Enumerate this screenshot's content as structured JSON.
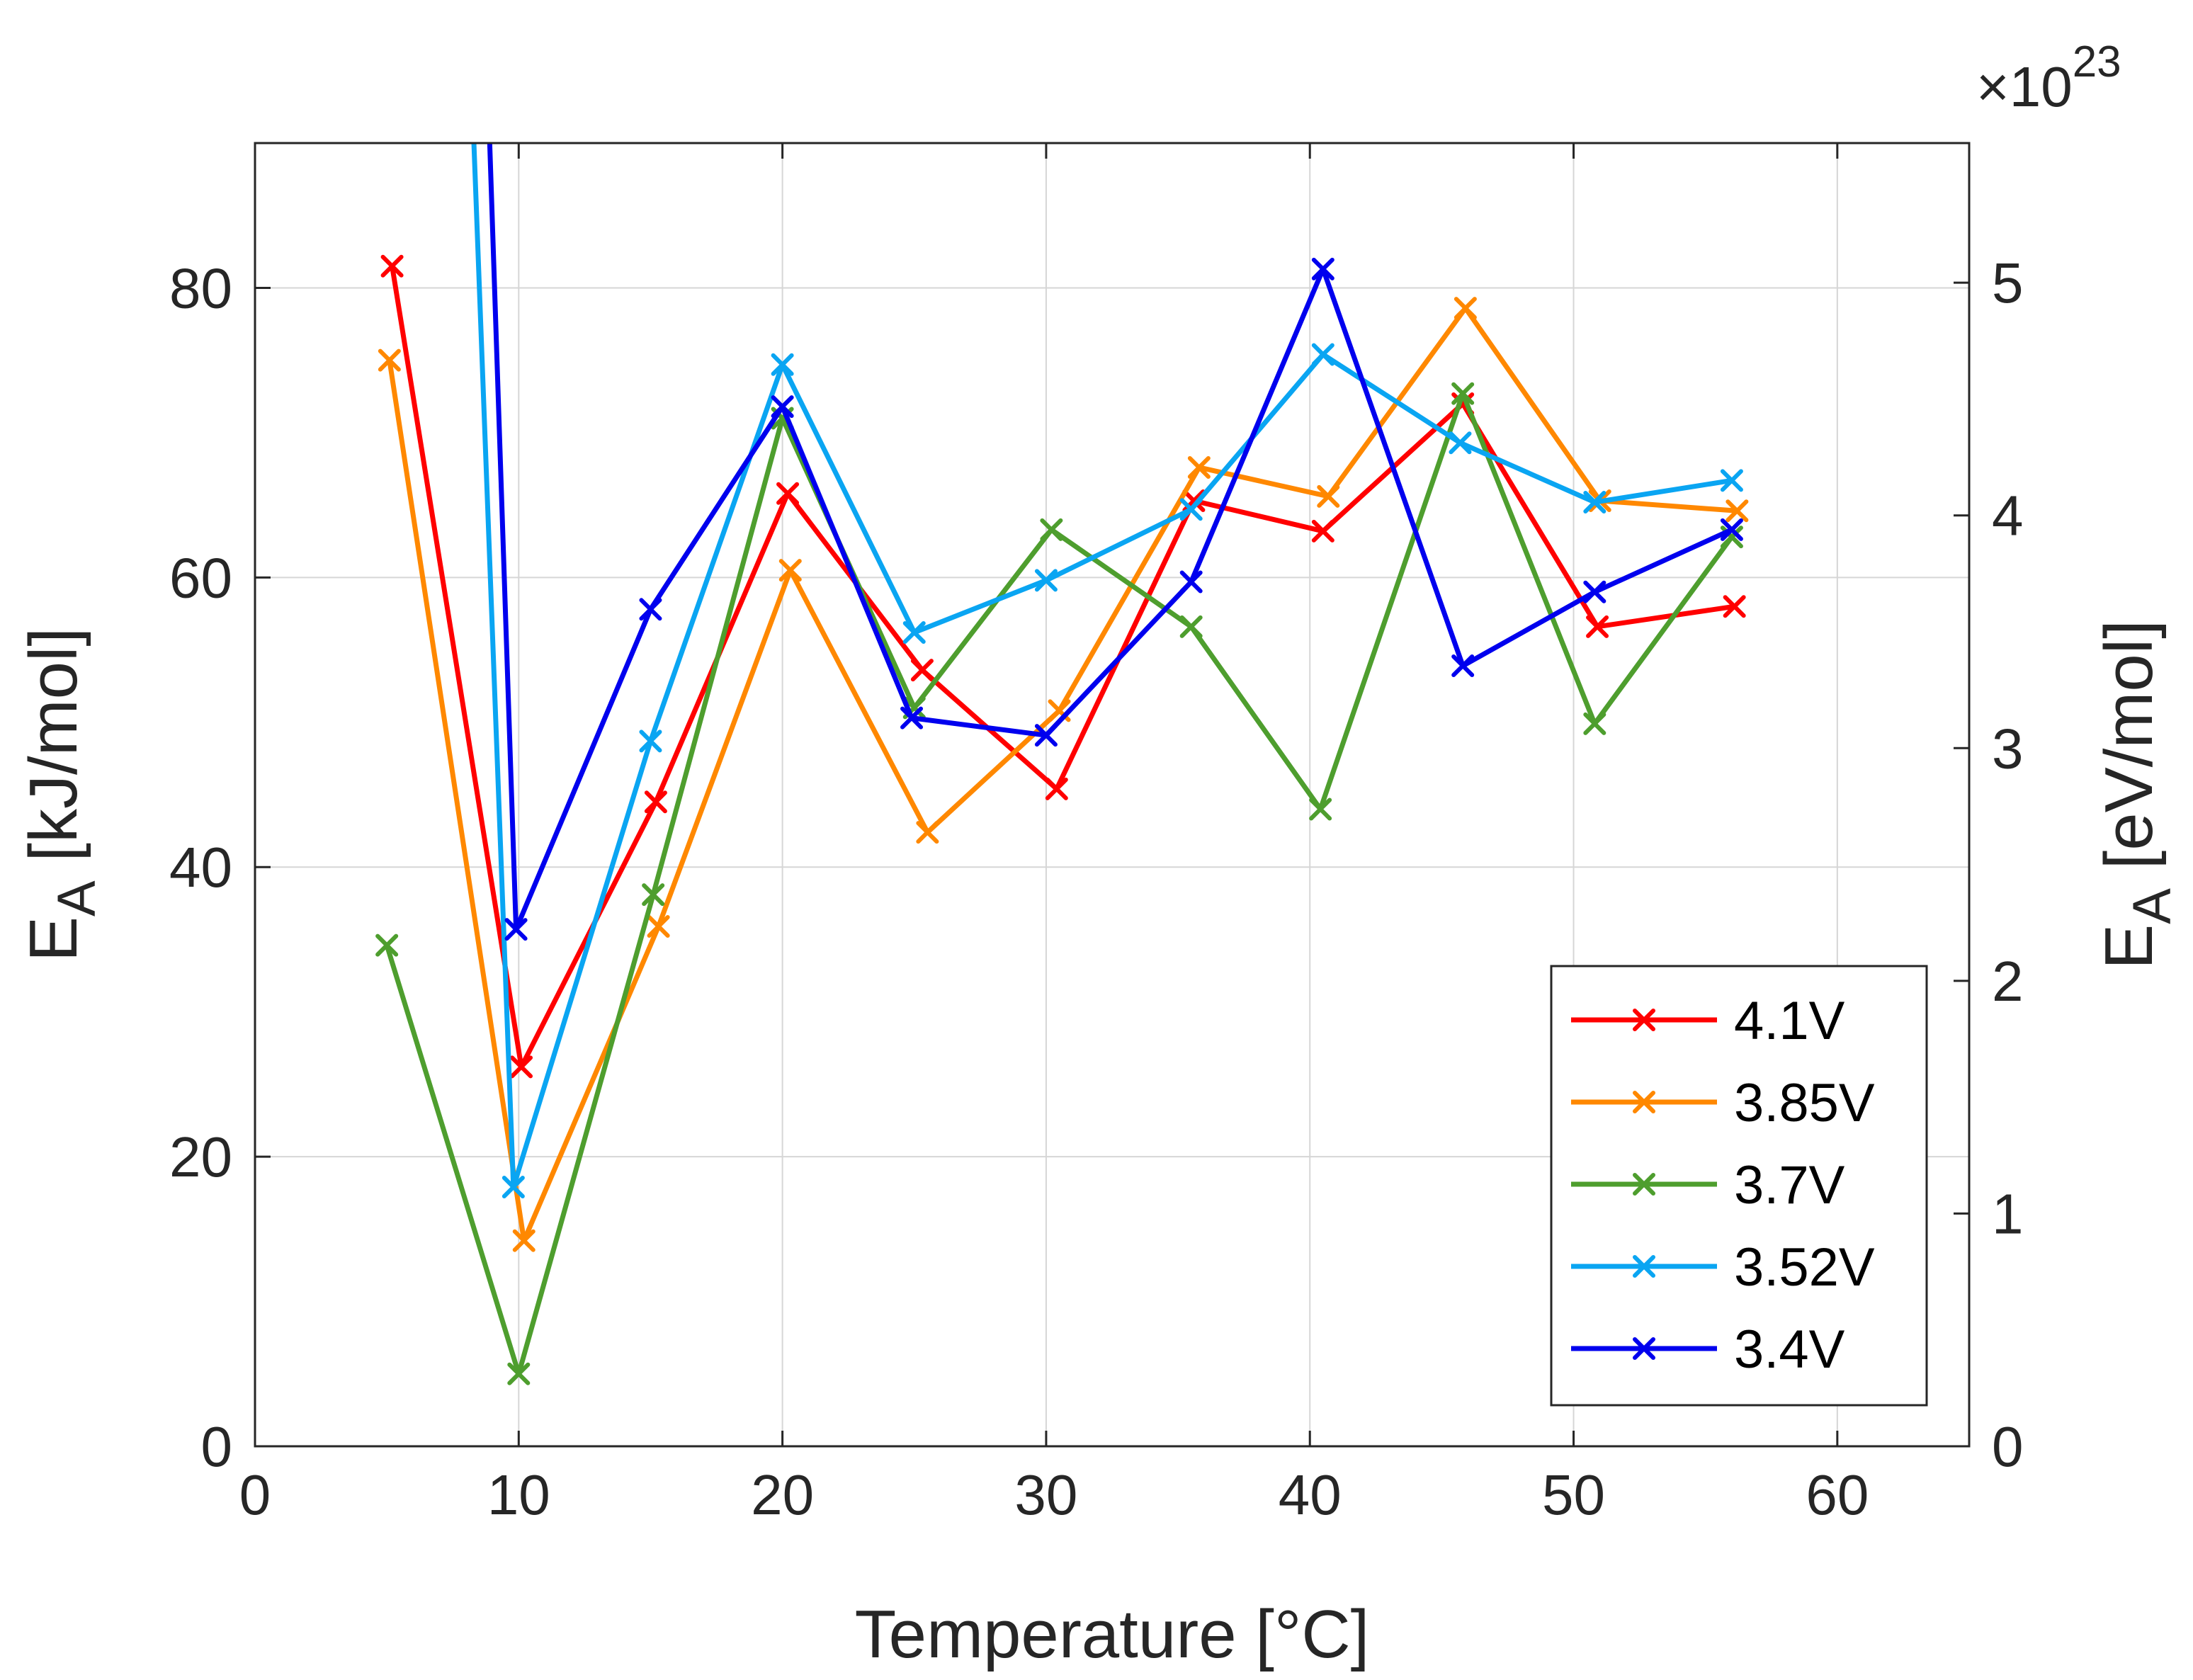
{
  "chart_data": {
    "type": "line",
    "xlabel": "Temperature [°C]",
    "ylabel_main": "E",
    "ylabel_sub": "A",
    "ylabel_unit": " [kJ/mol]",
    "y2label_main": "E",
    "y2label_sub": "A",
    "y2label_unit": " [eV/mol]",
    "y2_multiplier_prefix": "×10",
    "y2_multiplier_exponent": "23",
    "xlim": [
      0,
      65
    ],
    "ylim": [
      0,
      90
    ],
    "y2lim": [
      0,
      5.6
    ],
    "xticks": [
      0,
      10,
      20,
      30,
      40,
      50,
      60
    ],
    "yticks": [
      0,
      20,
      40,
      60,
      80
    ],
    "y2ticks": [
      0,
      1,
      2,
      3,
      4,
      5
    ],
    "grid": true,
    "legend_position": "bottom-right",
    "series": [
      {
        "name": "4.1V",
        "color": "#ff0000",
        "points": [
          [
            5.2,
            81.5
          ],
          [
            10.1,
            26.2
          ],
          [
            15.2,
            44.5
          ],
          [
            20.2,
            65.8
          ],
          [
            25.3,
            53.6
          ],
          [
            30.4,
            45.4
          ],
          [
            35.6,
            65.3
          ],
          [
            40.5,
            63.2
          ],
          [
            45.8,
            72
          ],
          [
            50.9,
            56.6
          ],
          [
            56.1,
            58
          ]
        ]
      },
      {
        "name": "3.85V",
        "color": "#ff8800",
        "points": [
          [
            5.1,
            75
          ],
          [
            10.2,
            14.2
          ],
          [
            15.3,
            35.9
          ],
          [
            20.3,
            60.5
          ],
          [
            25.5,
            42.4
          ],
          [
            30.5,
            50.8
          ],
          [
            35.8,
            67.6
          ],
          [
            40.7,
            65.6
          ],
          [
            45.9,
            78.6
          ],
          [
            51.0,
            65.3
          ],
          [
            56.2,
            64.6
          ]
        ]
      },
      {
        "name": "3.7V",
        "color": "#4e9e2e",
        "points": [
          [
            5.0,
            34.6
          ],
          [
            10.0,
            5.0
          ],
          [
            15.1,
            38.1
          ],
          [
            20.0,
            71.0
          ],
          [
            25.0,
            51.0
          ],
          [
            30.2,
            63.3
          ],
          [
            35.5,
            56.6
          ],
          [
            40.4,
            44.0
          ],
          [
            45.8,
            72.7
          ],
          [
            50.8,
            49.9
          ],
          [
            56.0,
            62.8
          ]
        ]
      },
      {
        "name": "3.52V",
        "color": "#0aa5f2",
        "points": [
          [
            8.3,
            90
          ],
          [
            9.8,
            17.9
          ],
          [
            15.0,
            48.7
          ],
          [
            20.0,
            74.7
          ],
          [
            25.0,
            56.2
          ],
          [
            30.0,
            59.8
          ],
          [
            35.5,
            64.7
          ],
          [
            40.5,
            75.4
          ],
          [
            45.7,
            69.3
          ],
          [
            50.8,
            65.2
          ],
          [
            56.0,
            66.7
          ]
        ]
      },
      {
        "name": "3.4V",
        "color": "#0000ee",
        "points": [
          [
            8.9,
            90
          ],
          [
            9.9,
            35.7
          ],
          [
            15.0,
            57.8
          ],
          [
            20.0,
            71.8
          ],
          [
            24.9,
            50.3
          ],
          [
            30.0,
            49.1
          ],
          [
            35.5,
            59.7
          ],
          [
            40.5,
            81.3
          ],
          [
            45.8,
            53.9
          ],
          [
            50.8,
            59.0
          ],
          [
            56.0,
            63.3
          ]
        ]
      }
    ]
  }
}
